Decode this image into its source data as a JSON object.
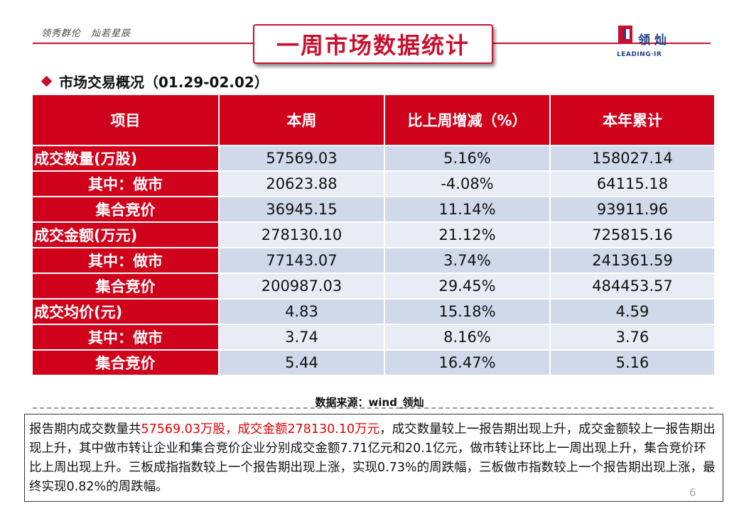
{
  "header": {
    "slogan": "领秀群伦　灿若星辰",
    "title": "一周市场数据统计",
    "logo_cn": "领灿",
    "logo_en": "LEADING·IR"
  },
  "section_title": "市场交易概况（01.29-02.02）",
  "table": {
    "headers": [
      "项目",
      "本周",
      "比上周增减（%）",
      "本年累计"
    ],
    "rows": [
      {
        "label": "成交数量(万股)",
        "week": "57569.03",
        "change": "5.16%",
        "ytd": "158027.14"
      },
      {
        "label": "其中：做市",
        "week": "20623.88",
        "change": "-4.08%",
        "ytd": "64115.18"
      },
      {
        "label": "集合竞价",
        "week": "36945.15",
        "change": "11.14%",
        "ytd": "93911.96"
      },
      {
        "label": "成交金额(万元)",
        "week": "278130.10",
        "change": "21.12%",
        "ytd": "725815.16"
      },
      {
        "label": "其中：做市",
        "week": "77143.07",
        "change": "3.74%",
        "ytd": "241361.59"
      },
      {
        "label": "集合竞价",
        "week": "200987.03",
        "change": "29.45%",
        "ytd": "484453.57"
      },
      {
        "label": "成交均价(元)",
        "week": "4.83",
        "change": "15.18%",
        "ytd": "4.59"
      },
      {
        "label": "其中：做市",
        "week": "3.74",
        "change": "8.16%",
        "ytd": "3.76"
      },
      {
        "label": "集合竞价",
        "week": "5.44",
        "change": "16.47%",
        "ytd": "5.16"
      }
    ]
  },
  "source": "数据来源：wind_领灿",
  "summary": {
    "part1": "报告期内成交数量共",
    "highlight": "57569.03万股，成交金额278130.10万元",
    "part2": "，成交数量较上一报告期出现上升，成交金额较上一报告期出现上升，其中做市转让企业和集合竞价企业分别成交金额7.71亿元和20.1亿元，做市转让环比上一周出现上升，集合竞价环比上周出现上升。三板成指指数较上一个报告期出现上涨，实现0.73%的周跌幅，三板做市指数较上一个报告期出现上涨，最终实现0.82%的周跌幅。"
  },
  "page_number": "6",
  "colors": {
    "brand_red": "#d0021b",
    "brand_blue": "#1f3f86",
    "row_dark": "#cfd9ea",
    "row_light": "#e8edf5"
  }
}
